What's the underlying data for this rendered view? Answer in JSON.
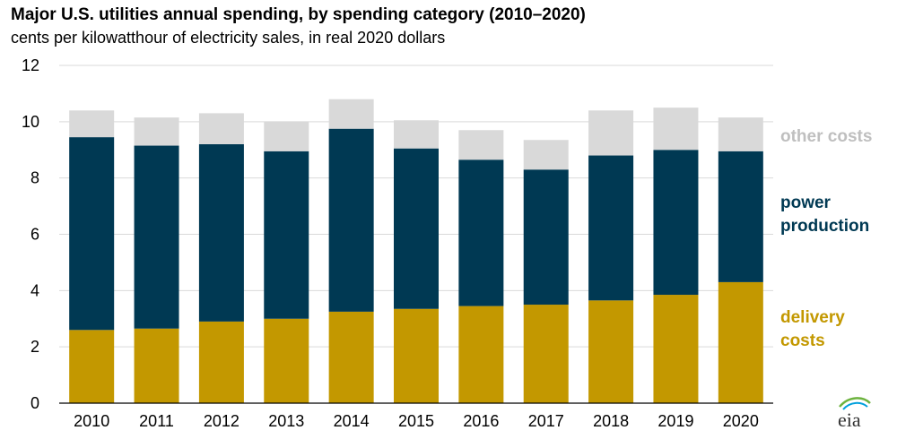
{
  "header": {
    "title": "Major U.S. utilities annual spending, by spending category (2010–2020)",
    "subtitle": "cents per kilowatthour of electricity sales, in real 2020 dollars"
  },
  "logo": {
    "text": "eia",
    "icon": "eia-logo-icon"
  },
  "colors": {
    "delivery": "#C39800",
    "power": "#003953",
    "other": "#D9D9D9",
    "other_label": "#BFBFBF",
    "grid": "#D9D9D9"
  },
  "chart_data": {
    "type": "bar",
    "stacked": true,
    "title": "Major U.S. utilities annual spending, by spending category (2010–2020)",
    "subtitle": "cents per kilowatthour of electricity sales, in real 2020 dollars",
    "categories": [
      "2010",
      "2011",
      "2012",
      "2013",
      "2014",
      "2015",
      "2016",
      "2017",
      "2018",
      "2019",
      "2020"
    ],
    "series": [
      {
        "name": "delivery costs",
        "legend_lines": [
          "delivery",
          "costs"
        ],
        "color": "#C39800",
        "values": [
          2.6,
          2.65,
          2.9,
          3.0,
          3.25,
          3.35,
          3.45,
          3.5,
          3.65,
          3.85,
          4.3
        ]
      },
      {
        "name": "power production",
        "legend_lines": [
          "power",
          "production"
        ],
        "color": "#003953",
        "values": [
          6.85,
          6.5,
          6.3,
          5.95,
          6.5,
          5.7,
          5.2,
          4.8,
          5.15,
          5.15,
          4.65
        ]
      },
      {
        "name": "other costs",
        "legend_lines": [
          "other costs"
        ],
        "color": "#D9D9D9",
        "values": [
          0.95,
          1.0,
          1.1,
          1.05,
          1.05,
          1.0,
          1.05,
          1.05,
          1.6,
          1.5,
          1.2
        ]
      }
    ],
    "ylim": [
      0,
      12
    ],
    "yticks": [
      0,
      2,
      4,
      6,
      8,
      10,
      12
    ],
    "xlabel": "",
    "ylabel": "",
    "grid": true,
    "legend_position": "right"
  }
}
